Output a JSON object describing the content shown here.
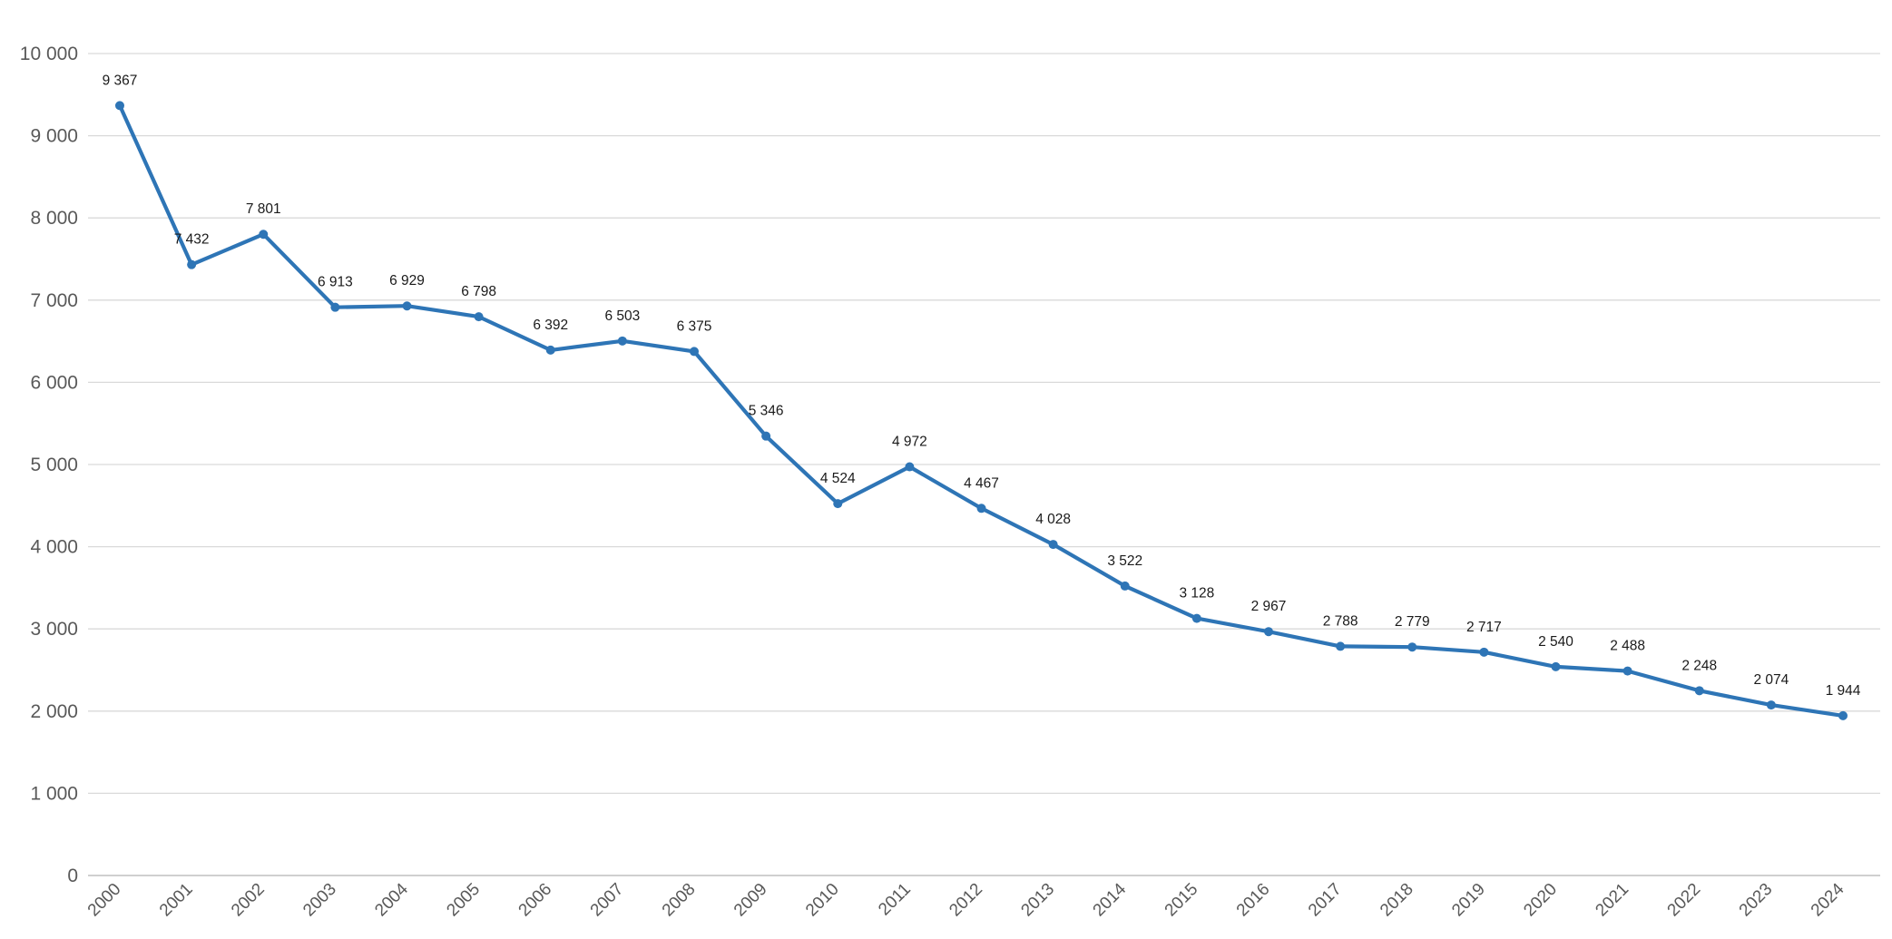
{
  "chart_data": {
    "type": "line",
    "title": "",
    "xlabel": "",
    "ylabel": "",
    "x": [
      "2000",
      "2001",
      "2002",
      "2003",
      "2004",
      "2005",
      "2006",
      "2007",
      "2008",
      "2009",
      "2010",
      "2011",
      "2012",
      "2013",
      "2014",
      "2015",
      "2016",
      "2017",
      "2018",
      "2019",
      "2020",
      "2021",
      "2022",
      "2023",
      "2024"
    ],
    "series": [
      {
        "values": [
          9367,
          7432,
          7801,
          6913,
          6929,
          6798,
          6392,
          6503,
          6375,
          5346,
          4524,
          4972,
          4467,
          4028,
          3522,
          3128,
          2967,
          2788,
          2779,
          2717,
          2540,
          2488,
          2248,
          2074,
          1944
        ],
        "data_labels": [
          "9 367",
          "7 432",
          "7 801",
          "6 913",
          "6 929",
          "6 798",
          "6 392",
          "6 503",
          "6 375",
          "5 346",
          "4 524",
          "4 972",
          "4 467",
          "4 028",
          "3 522",
          "3 128",
          "2 967",
          "2 788",
          "2 779",
          "2 717",
          "2 540",
          "2 488",
          "2 248",
          "2 074",
          "1 944"
        ],
        "color": "#2e75b6"
      }
    ],
    "ylim": [
      0,
      10000
    ],
    "y_ticks": [
      0,
      1000,
      2000,
      3000,
      4000,
      5000,
      6000,
      7000,
      8000,
      9000,
      10000
    ],
    "y_tick_labels": [
      "0",
      "1 000",
      "2 000",
      "3 000",
      "4 000",
      "5 000",
      "6 000",
      "7 000",
      "8 000",
      "9 000",
      "10 000"
    ],
    "grid": true,
    "legend": "none",
    "colors": {
      "grid": "#d9d9d9",
      "axis": "#bfbfbf",
      "tick_text": "#595959",
      "label_text": "#1a1a1a"
    }
  }
}
